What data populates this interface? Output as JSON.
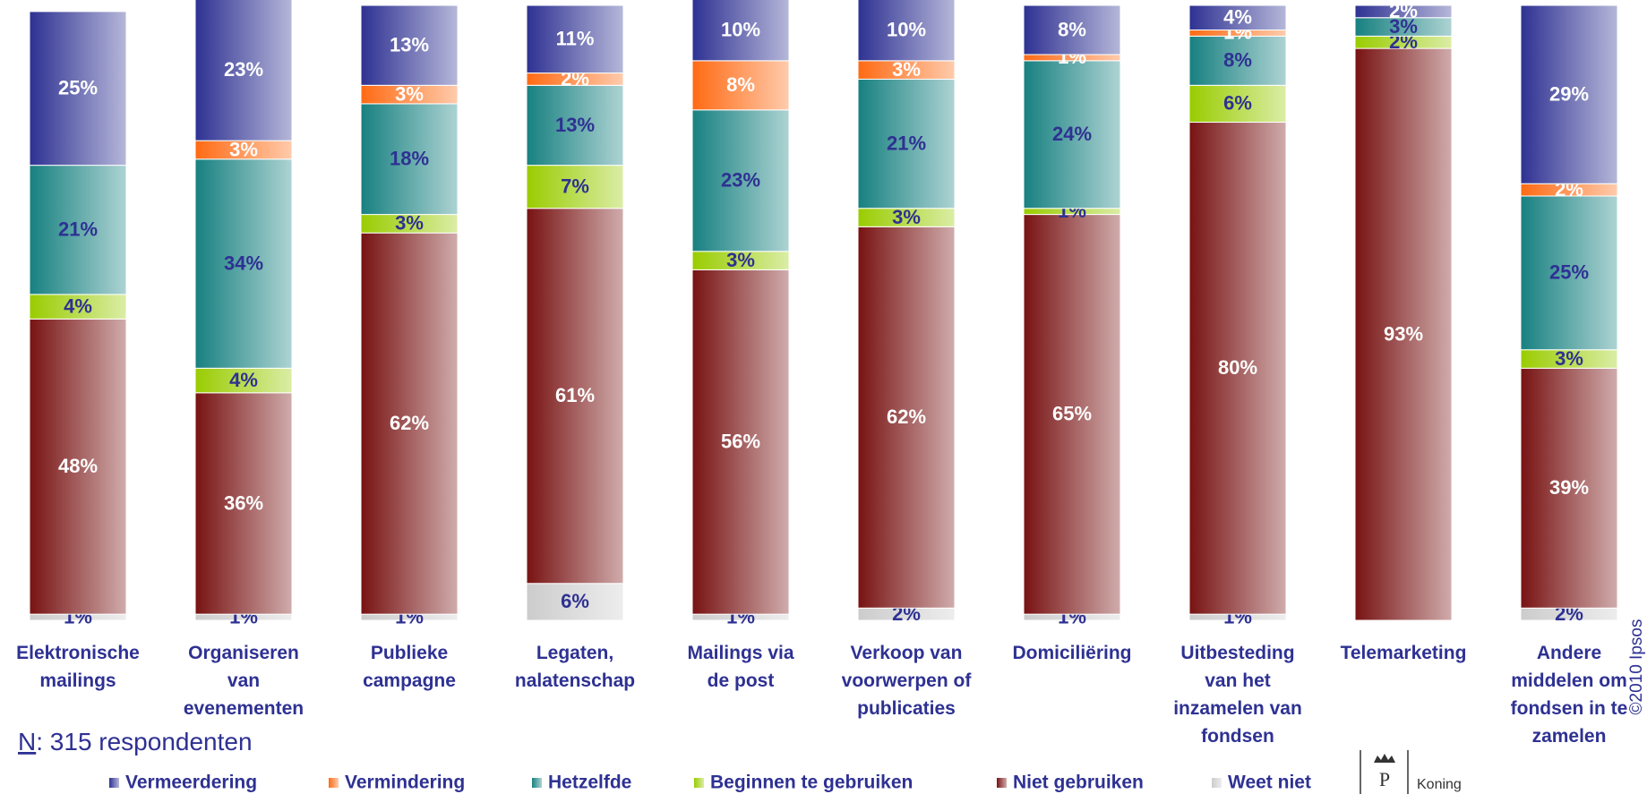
{
  "chart_data": {
    "type": "stacked-bar",
    "categories": [
      "Elektronische\nmailings",
      "Organiseren\nvan\nevenementen",
      "Publieke\ncampagne",
      "Legaten,\nnalatenschap",
      "Mailings via\nde post",
      "Verkoop van\nvoorwerpen of\npublicaties",
      "Domiciliëring",
      "Uitbesteding\nvan het\ninzamelen van\nfondsen",
      "Telemarketing",
      "Andere\nmiddelen om\nfondsen in te\nzamelen"
    ],
    "series": [
      {
        "name": "Vermeerdering",
        "color": "#2e3192",
        "label_color": "#ffffff",
        "values": [
          25,
          23,
          13,
          11,
          10,
          10,
          8,
          4,
          2,
          29
        ],
        "value_labels": [
          "25%",
          "23%",
          "13%",
          "11%",
          "10%",
          "10%",
          "8%",
          "4%",
          "2%",
          "29%"
        ]
      },
      {
        "name": "Vermindering",
        "color": "#ff6a13",
        "label_color": "#ffffff",
        "values": [
          null,
          3,
          3,
          2,
          8,
          3,
          1,
          1,
          null,
          2
        ],
        "value_labels": [
          null,
          "3%",
          "3%",
          "2%",
          "8%",
          "3%",
          "1%",
          "1%",
          null,
          "2%"
        ]
      },
      {
        "name": "Hetzelfde",
        "color": "#178080",
        "label_color": "#2e3192",
        "values": [
          21,
          34,
          18,
          13,
          23,
          21,
          24,
          8,
          3,
          25
        ],
        "value_labels": [
          "21%",
          "34%",
          "18%",
          "13%",
          "23%",
          "21%",
          "24%",
          "8%",
          "3%",
          "25%"
        ]
      },
      {
        "name": "Beginnen te gebruiken",
        "color": "#99cc00",
        "label_color": "#2e3192",
        "values": [
          4,
          4,
          3,
          7,
          3,
          3,
          1,
          6,
          2,
          3
        ],
        "value_labels": [
          "4%",
          "4%",
          "3%",
          "7%",
          "3%",
          "3%",
          "1%",
          "6%",
          "2%",
          "3%"
        ]
      },
      {
        "name": "Niet gebruiken",
        "color": "#781212",
        "label_color": "#ffffff",
        "values": [
          48,
          36,
          62,
          61,
          56,
          62,
          65,
          80,
          93,
          39
        ],
        "value_labels": [
          "48%",
          "36%",
          "62%",
          "61%",
          "56%",
          "62%",
          "65%",
          "80%",
          "93%",
          "39%"
        ]
      },
      {
        "name": "Weet niet",
        "color": "#cccccc",
        "label_color": "#2e3192",
        "values": [
          1,
          1,
          1,
          6,
          1,
          2,
          1,
          1,
          null,
          2
        ],
        "value_labels": [
          "1%",
          "1%",
          "1%",
          "6%",
          "1%",
          "2%",
          "1%",
          "1%",
          null,
          "2%"
        ]
      }
    ],
    "ylim": [
      0,
      100
    ],
    "note_label": "N",
    "note": ": 315 respondenten",
    "copyright": "©2010 Ipsos",
    "logo_text": "Koning"
  }
}
